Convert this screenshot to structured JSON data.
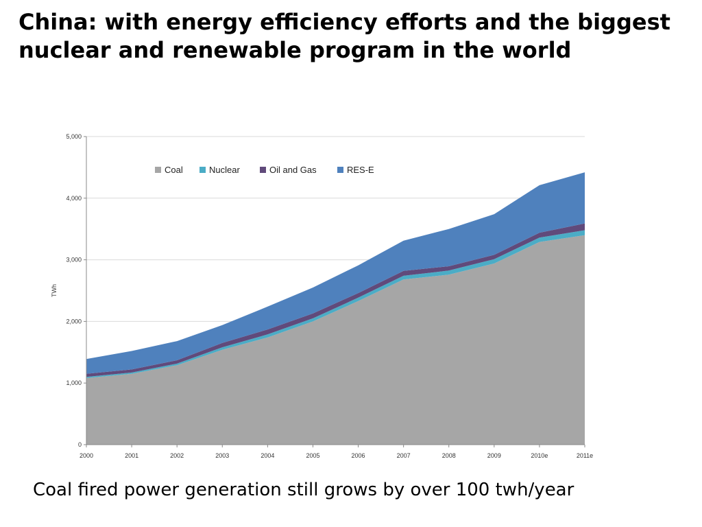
{
  "slide": {
    "title": "China: with energy efficiency efforts and the biggest nuclear and renewable program in the world",
    "caption": "Coal fired power generation still grows by over 100 twh/year"
  },
  "chart_data": {
    "type": "area",
    "stacked": true,
    "title": "",
    "xlabel": "",
    "ylabel": "TWh",
    "ylim": [
      0,
      5000
    ],
    "yticks": [
      0,
      1000,
      2000,
      3000,
      4000,
      5000
    ],
    "ytick_labels": [
      "0",
      "1,000",
      "2,000",
      "3,000",
      "4,000",
      "5,000"
    ],
    "categories": [
      "2000",
      "2001",
      "2002",
      "2003",
      "2004",
      "2005",
      "2006",
      "2007",
      "2008",
      "2009",
      "2010e",
      "2011e"
    ],
    "series": [
      {
        "name": "Coal",
        "color": "#a6a6a6",
        "values": [
          1080,
          1150,
          1290,
          1540,
          1740,
          2000,
          2330,
          2680,
          2760,
          2940,
          3290,
          3400
        ]
      },
      {
        "name": "Nuclear",
        "color": "#4bacc6",
        "values": [
          20,
          20,
          25,
          40,
          50,
          50,
          55,
          60,
          65,
          70,
          70,
          80
        ]
      },
      {
        "name": "Oil and Gas",
        "color": "#604a7b",
        "values": [
          50,
          50,
          55,
          70,
          80,
          80,
          75,
          80,
          70,
          70,
          80,
          110
        ]
      },
      {
        "name": "RES-E",
        "color": "#4f81bd",
        "values": [
          240,
          300,
          310,
          290,
          370,
          420,
          450,
          490,
          605,
          660,
          770,
          830
        ]
      }
    ],
    "legend_position": "top-left-inside",
    "grid": "horizontal"
  }
}
